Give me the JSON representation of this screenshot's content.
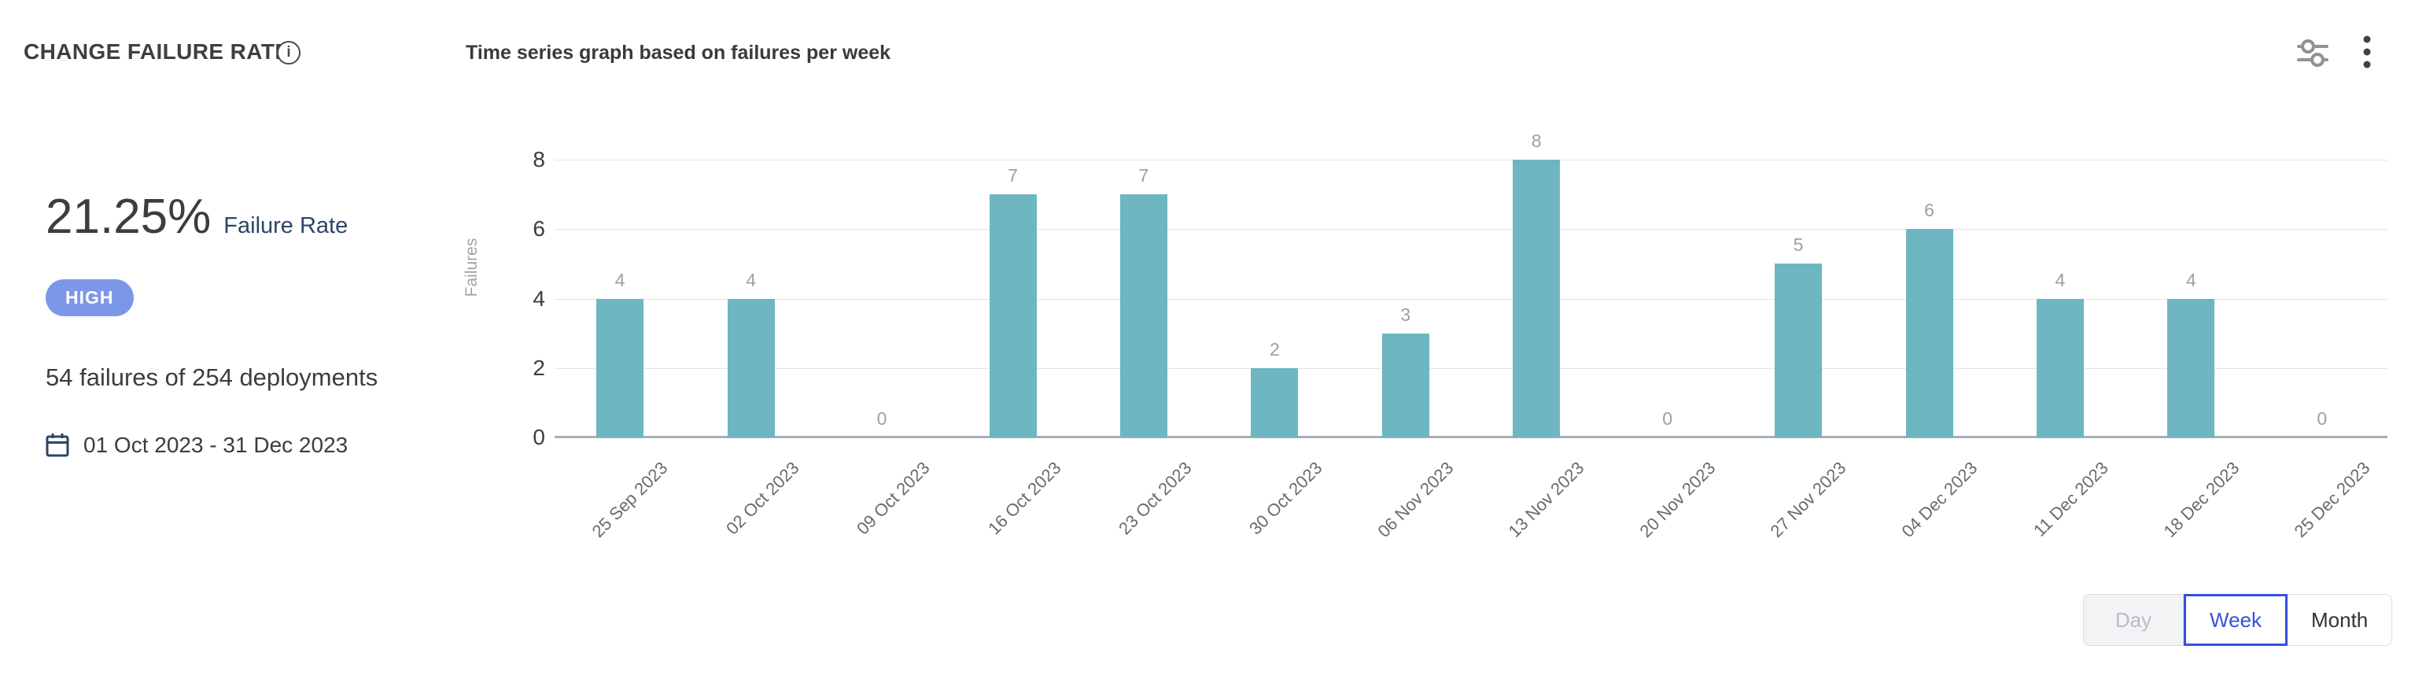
{
  "header": {
    "title": "CHANGE FAILURE RATE",
    "subtitle": "Time series graph based on failures per week"
  },
  "stats": {
    "rate_value": "21.25%",
    "rate_label": "Failure Rate",
    "level_badge": "HIGH",
    "summary": "54 failures of 254 deployments",
    "date_range": "01 Oct 2023 - 31 Dec 2023"
  },
  "chart_data": {
    "type": "bar",
    "title": "Time series graph based on failures per week",
    "categories": [
      "25 Sep 2023",
      "02 Oct 2023",
      "09 Oct 2023",
      "16 Oct 2023",
      "23 Oct 2023",
      "30 Oct 2023",
      "06 Nov 2023",
      "13 Nov 2023",
      "20 Nov 2023",
      "27 Nov 2023",
      "04 Dec 2023",
      "11 Dec 2023",
      "18 Dec 2023",
      "25 Dec 2023"
    ],
    "values": [
      4,
      4,
      0,
      7,
      7,
      2,
      3,
      8,
      0,
      5,
      6,
      4,
      4,
      0
    ],
    "xlabel": "",
    "ylabel": "Failures",
    "yticks": [
      0,
      2,
      4,
      6,
      8
    ],
    "ylim": [
      0,
      8
    ],
    "grid": true,
    "legend": false,
    "bar_color": "#6db6c2"
  },
  "controls": {
    "granularity": [
      {
        "label": "Day",
        "state": "disabled"
      },
      {
        "label": "Week",
        "state": "selected"
      },
      {
        "label": "Month",
        "state": "normal"
      }
    ]
  },
  "icons": {
    "info": "info-icon",
    "settings": "settings-sliders-icon",
    "menu": "kebab-menu-icon",
    "calendar": "calendar-icon"
  },
  "colors": {
    "bar": "#6db6c2",
    "badge_bg": "#7d97e8",
    "badge_text": "#ffffff",
    "selected_toggle": "#3351de",
    "rate_label": "#2e4468",
    "gridline": "#e4e4e4",
    "axis_baseline": "#a6adbb"
  }
}
